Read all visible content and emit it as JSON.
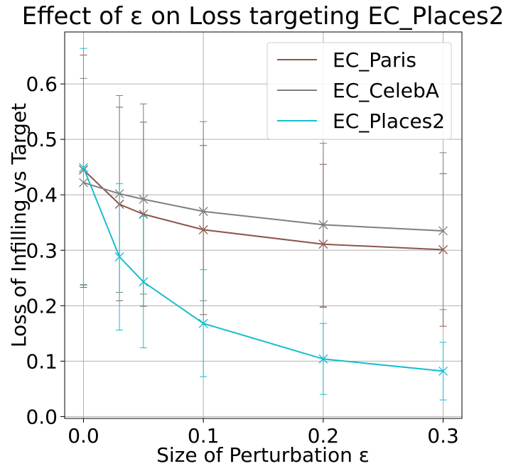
{
  "chart_data": {
    "type": "line",
    "title": "Effect of ε on Loss targeting EC_Places2",
    "xlabel": "Size of Perturbation ε",
    "ylabel": "Loss of Infilling vs Target",
    "x": [
      0.0,
      0.03,
      0.05,
      0.1,
      0.2,
      0.3
    ],
    "xticks": [
      0.0,
      0.1,
      0.2,
      0.3
    ],
    "xtick_labels": [
      "0.0",
      "0.1",
      "0.2",
      "0.3"
    ],
    "yticks": [
      0.0,
      0.1,
      0.2,
      0.3,
      0.4,
      0.5,
      0.6
    ],
    "ytick_labels": [
      "0.0",
      "0.1",
      "0.2",
      "0.3",
      "0.4",
      "0.5",
      "0.6"
    ],
    "xlim": [
      -0.0157,
      0.3157
    ],
    "ylim": [
      -0.0033,
      0.6937
    ],
    "grid": true,
    "legend_position": "top-right",
    "series": [
      {
        "name": "EC_Paris",
        "color": "#8c564b",
        "values": [
          0.445,
          0.383,
          0.365,
          0.337,
          0.311,
          0.301
        ],
        "err_low": [
          0.233,
          0.209,
          0.199,
          0.184,
          0.198,
          0.163
        ],
        "err_high": [
          0.652,
          0.558,
          0.531,
          0.489,
          0.455,
          0.438
        ]
      },
      {
        "name": "EC_CelebA",
        "color": "#7f7f7f",
        "values": [
          0.422,
          0.402,
          0.392,
          0.37,
          0.346,
          0.335
        ],
        "err_low": [
          0.238,
          0.224,
          0.221,
          0.209,
          0.197,
          0.193
        ],
        "err_high": [
          0.61,
          0.579,
          0.564,
          0.532,
          0.493,
          0.476
        ]
      },
      {
        "name": "EC_Places2",
        "color": "#17becf",
        "values": [
          0.449,
          0.288,
          0.243,
          0.168,
          0.104,
          0.082
        ],
        "err_low": [
          0.237,
          0.156,
          0.124,
          0.072,
          0.04,
          0.03
        ],
        "err_high": [
          0.664,
          0.42,
          0.361,
          0.265,
          0.168,
          0.134
        ]
      }
    ]
  }
}
